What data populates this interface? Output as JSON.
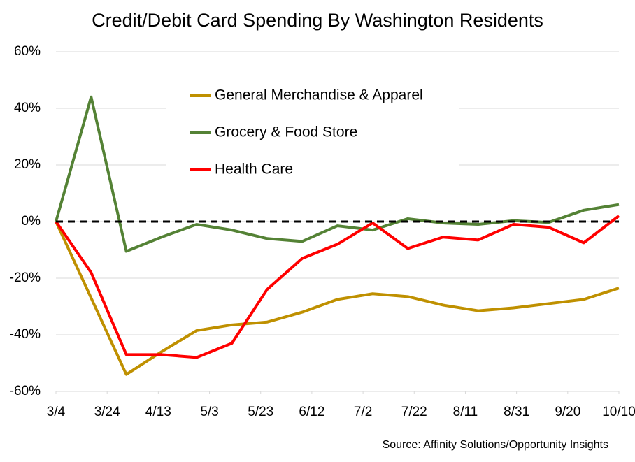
{
  "chart_data": {
    "type": "line",
    "title": "Credit/Debit Card Spending By Washington Residents",
    "source": "Source: Affinity Solutions/Opportunity Insights",
    "x": [
      0,
      13.75,
      27.5,
      41.25,
      55,
      68.75,
      82.5,
      96.25,
      110,
      123.75,
      137.5,
      151.25,
      165,
      178.75,
      192.5,
      206.25,
      220
    ],
    "xlim": [
      0,
      220
    ],
    "xticks": [
      {
        "value": 0,
        "label": "3/4"
      },
      {
        "value": 20,
        "label": "3/24"
      },
      {
        "value": 40,
        "label": "4/13"
      },
      {
        "value": 60,
        "label": "5/3"
      },
      {
        "value": 80,
        "label": "5/23"
      },
      {
        "value": 100,
        "label": "6/12"
      },
      {
        "value": 120,
        "label": "7/2"
      },
      {
        "value": 140,
        "label": "7/22"
      },
      {
        "value": 160,
        "label": "8/11"
      },
      {
        "value": 180,
        "label": "8/31"
      },
      {
        "value": 200,
        "label": "9/20"
      },
      {
        "value": 220,
        "label": "10/10"
      }
    ],
    "ylim": [
      -60,
      60
    ],
    "yticks": [
      {
        "value": -60,
        "label": "-60%"
      },
      {
        "value": -40,
        "label": "-40%"
      },
      {
        "value": -20,
        "label": "-20%"
      },
      {
        "value": 0,
        "label": "0%"
      },
      {
        "value": 20,
        "label": "20%"
      },
      {
        "value": 40,
        "label": "40%"
      },
      {
        "value": 60,
        "label": "60%"
      }
    ],
    "grid": true,
    "zero_line": true,
    "legend": "upper left",
    "series": [
      {
        "name": "General Merchandise & Apparel",
        "color": "#bf9000",
        "values": [
          0,
          -27,
          -54,
          -46,
          -38.5,
          -36.5,
          -35.5,
          -32,
          -27.5,
          -25.5,
          -26.5,
          -29.5,
          -31.5,
          -30.5,
          -29,
          -27.5,
          -23.5
        ]
      },
      {
        "name": "Grocery & Food Store",
        "color": "#548235",
        "values": [
          0,
          44,
          -10.5,
          -5.5,
          -1,
          -3,
          -6,
          -7,
          -1.5,
          -3,
          1,
          -0.5,
          -1,
          0.3,
          -0.3,
          4,
          6
        ]
      },
      {
        "name": "Health Care",
        "color": "#ff0000",
        "values": [
          0,
          -18,
          -47,
          -47,
          -48,
          -43,
          -24,
          -13,
          -8,
          -0.5,
          -9.5,
          -5.5,
          -6.5,
          -1,
          -2,
          -7.5,
          2
        ]
      }
    ]
  }
}
